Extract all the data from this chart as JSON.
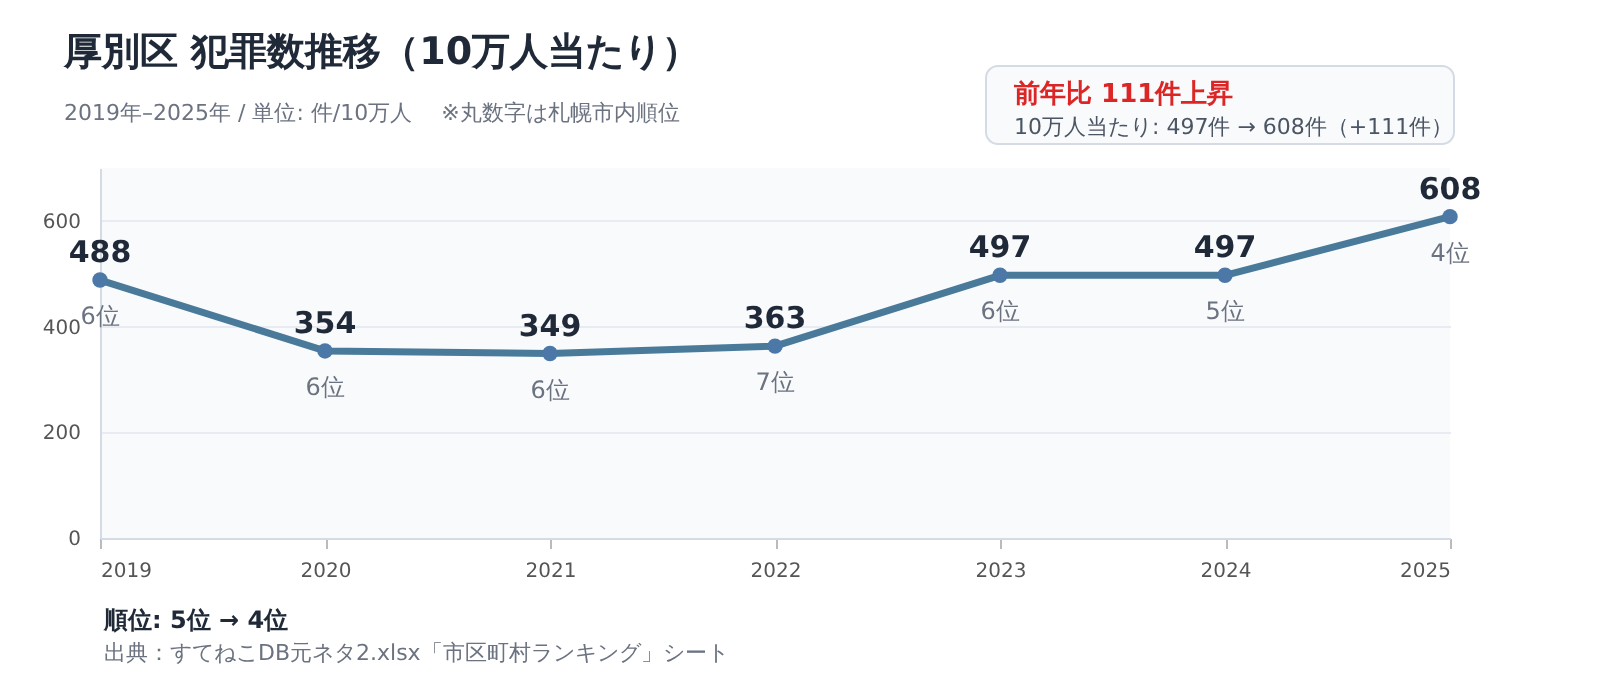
{
  "chart_data": {
    "type": "line",
    "title": "厚別区 犯罪数推移（10万人当たり）",
    "subtitle": "2019年–2025年 / 単位: 件/10万人 　※丸数字は札幌市内順位",
    "x": [
      2019,
      2020,
      2021,
      2022,
      2023,
      2024,
      2025
    ],
    "series": [
      {
        "color": "#4a7a99",
        "values": [
          488,
          354,
          349,
          363,
          497,
          497,
          608
        ]
      }
    ],
    "xlim": [
      2019,
      2025
    ],
    "xticks": [
      2019,
      2020,
      2021,
      2022,
      2023,
      2024,
      2025
    ],
    "ylim": [
      0,
      700
    ],
    "yticks": [
      0,
      200,
      400,
      600
    ],
    "grid": "y",
    "marker": "circle",
    "line_style": "solid",
    "data_labels": true,
    "annotations": [
      {
        "text": "6位",
        "x": 2019,
        "y": 488
      },
      {
        "text": "6位",
        "x": 2020,
        "y": 354
      },
      {
        "text": "6位",
        "x": 2021,
        "y": 349
      },
      {
        "text": "7位",
        "x": 2022,
        "y": 363
      },
      {
        "text": "6位",
        "x": 2023,
        "y": 497
      },
      {
        "text": "5位",
        "x": 2024,
        "y": 497
      },
      {
        "text": "4位",
        "x": 2025,
        "y": 608
      },
      "前年比 111件上昇",
      "10万人当たり: 497件 → 608件（+111件）",
      "順位: 5位 → 4位",
      "出典：すてねこDB元ネタ2.xlsx「市区町村ランキング」シート"
    ]
  }
}
